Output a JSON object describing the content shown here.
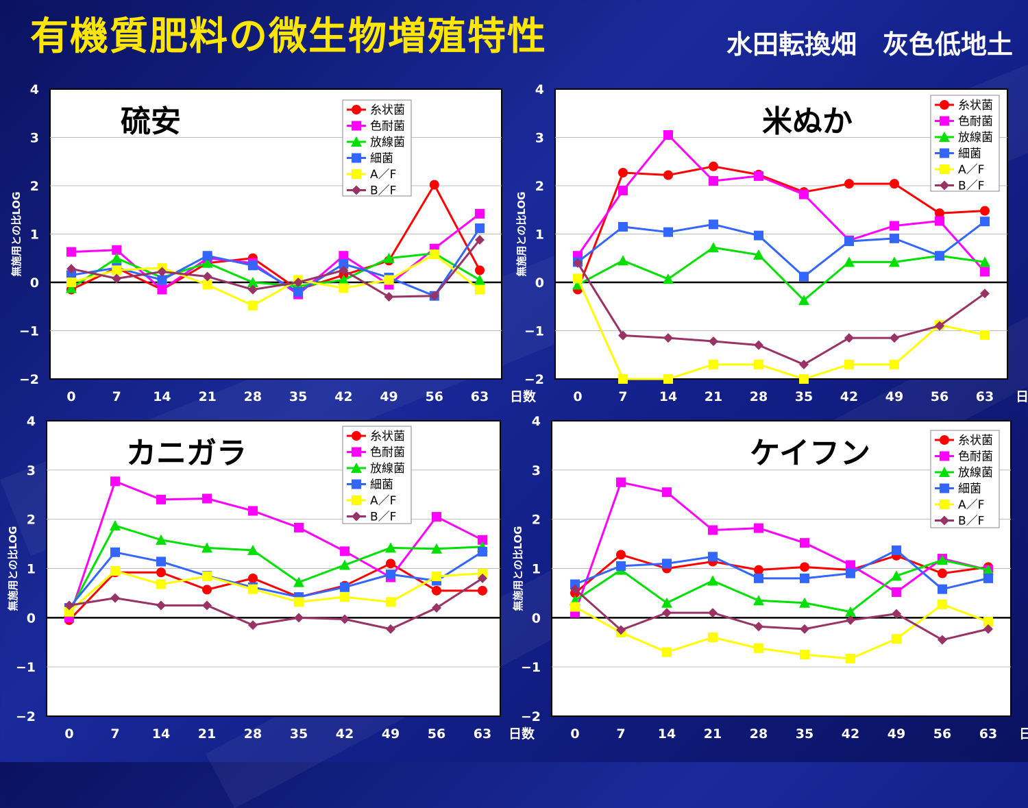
{
  "header": {
    "title": "有機質肥料の微生物増殖特性",
    "subtitle": "水田転換畑　灰色低地土"
  },
  "chart_data": [
    {
      "type": "line",
      "title": "硫安",
      "xlabel": "日数",
      "ylabel": "無施用との比LOG",
      "x": [
        0,
        7,
        14,
        21,
        28,
        35,
        42,
        49,
        56,
        63
      ],
      "ylim": [
        -2,
        4
      ],
      "yticks": [
        4,
        3,
        2,
        1,
        0,
        -1,
        -2
      ],
      "grid": true,
      "legend": "top-right",
      "series": [
        {
          "name": "糸状菌",
          "color": "#ff0000",
          "marker": "circle",
          "values": [
            -0.15,
            0.3,
            -0.15,
            0.4,
            0.5,
            -0.15,
            0.15,
            0.45,
            2.02,
            0.25
          ]
        },
        {
          "name": "色耐菌",
          "color": "#ff00ff",
          "marker": "square",
          "values": [
            0.63,
            0.67,
            -0.15,
            0.5,
            0.4,
            -0.25,
            0.55,
            -0.05,
            0.7,
            1.42
          ]
        },
        {
          "name": "放線菌",
          "color": "#00e000",
          "marker": "triangle",
          "values": [
            -0.12,
            0.5,
            0.1,
            0.4,
            0.0,
            -0.08,
            0.05,
            0.5,
            0.6,
            0.05
          ]
        },
        {
          "name": "細菌",
          "color": "#3366ff",
          "marker": "square",
          "values": [
            0.15,
            0.3,
            0.05,
            0.55,
            0.35,
            -0.2,
            0.38,
            0.1,
            -0.28,
            1.12
          ]
        },
        {
          "name": "A／F",
          "color": "#ffff00",
          "marker": "square",
          "values": [
            0.0,
            0.25,
            0.3,
            -0.05,
            -0.48,
            0.05,
            -0.12,
            0.05,
            0.58,
            -0.15
          ]
        },
        {
          "name": "B／F",
          "color": "#993366",
          "marker": "diamond",
          "values": [
            0.28,
            0.08,
            0.22,
            0.12,
            -0.15,
            0.0,
            0.25,
            -0.3,
            -0.28,
            0.88
          ]
        }
      ]
    },
    {
      "type": "line",
      "title": "米ぬか",
      "xlabel": "日数",
      "ylabel": "無施用との比LOG",
      "x": [
        0,
        7,
        14,
        21,
        28,
        35,
        42,
        49,
        56,
        63
      ],
      "ylim": [
        -2,
        4
      ],
      "yticks": [
        4,
        3,
        2,
        1,
        0,
        -1,
        -2
      ],
      "grid": true,
      "legend": "top-right",
      "series": [
        {
          "name": "糸状菌",
          "color": "#ff0000",
          "marker": "circle",
          "values": [
            -0.15,
            2.27,
            2.22,
            2.4,
            2.23,
            1.87,
            2.04,
            2.04,
            1.43,
            1.48
          ]
        },
        {
          "name": "色耐菌",
          "color": "#ff00ff",
          "marker": "square",
          "values": [
            0.55,
            1.9,
            3.05,
            2.1,
            2.2,
            1.82,
            0.87,
            1.17,
            1.27,
            0.22
          ]
        },
        {
          "name": "放線菌",
          "color": "#00e000",
          "marker": "triangle",
          "values": [
            -0.05,
            0.45,
            0.07,
            0.72,
            0.57,
            -0.37,
            0.42,
            0.42,
            0.55,
            0.42
          ]
        },
        {
          "name": "細菌",
          "color": "#3366ff",
          "marker": "square",
          "values": [
            0.42,
            1.15,
            1.04,
            1.2,
            0.97,
            0.12,
            0.85,
            0.91,
            0.55,
            1.26
          ]
        },
        {
          "name": "A／F",
          "color": "#ffff00",
          "marker": "square",
          "values": [
            0.08,
            -2.0,
            -2.0,
            -1.7,
            -1.7,
            -2.0,
            -1.7,
            -1.7,
            -0.88,
            -1.09
          ]
        },
        {
          "name": "B／F",
          "color": "#993366",
          "marker": "diamond",
          "values": [
            0.4,
            -1.1,
            -1.15,
            -1.22,
            -1.3,
            -1.7,
            -1.15,
            -1.15,
            -0.9,
            -0.23
          ]
        }
      ]
    },
    {
      "type": "line",
      "title": "カニガラ",
      "xlabel": "日数",
      "ylabel": "無施用との比LOG",
      "x": [
        0,
        7,
        14,
        21,
        28,
        35,
        42,
        49,
        56,
        63
      ],
      "ylim": [
        -2,
        4
      ],
      "yticks": [
        4,
        3,
        2,
        1,
        0,
        -1,
        -2
      ],
      "grid": true,
      "legend": "top-right",
      "series": [
        {
          "name": "糸状菌",
          "color": "#ff0000",
          "marker": "circle",
          "values": [
            -0.05,
            0.92,
            0.92,
            0.57,
            0.8,
            0.42,
            0.65,
            1.1,
            0.55,
            0.55
          ]
        },
        {
          "name": "色耐菌",
          "color": "#ff00ff",
          "marker": "square",
          "values": [
            0.0,
            2.77,
            2.4,
            2.42,
            2.17,
            1.83,
            1.35,
            0.82,
            2.05,
            1.58
          ]
        },
        {
          "name": "放線菌",
          "color": "#00e000",
          "marker": "triangle",
          "values": [
            0.12,
            1.87,
            1.58,
            1.42,
            1.37,
            0.72,
            1.07,
            1.42,
            1.4,
            1.44
          ]
        },
        {
          "name": "細菌",
          "color": "#3366ff",
          "marker": "square",
          "values": [
            0.2,
            1.33,
            1.14,
            0.85,
            0.62,
            0.42,
            0.62,
            0.88,
            0.75,
            1.34
          ]
        },
        {
          "name": "A／F",
          "color": "#ffff00",
          "marker": "square",
          "values": [
            0.12,
            0.95,
            0.68,
            0.84,
            0.58,
            0.32,
            0.42,
            0.32,
            0.84,
            0.9
          ]
        },
        {
          "name": "B／F",
          "color": "#993366",
          "marker": "diamond",
          "values": [
            0.25,
            0.4,
            0.25,
            0.25,
            -0.15,
            0.0,
            -0.03,
            -0.23,
            0.2,
            0.8
          ]
        }
      ]
    },
    {
      "type": "line",
      "title": "ケイフン",
      "xlabel": "日数",
      "ylabel": "無施用との比LOG",
      "x": [
        0,
        7,
        14,
        21,
        28,
        35,
        42,
        49,
        56,
        63
      ],
      "ylim": [
        -2,
        4
      ],
      "yticks": [
        4,
        3,
        2,
        1,
        0,
        -1,
        -2
      ],
      "grid": true,
      "legend": "top-right",
      "series": [
        {
          "name": "糸状菌",
          "color": "#ff0000",
          "marker": "circle",
          "values": [
            0.5,
            1.28,
            1.0,
            1.14,
            0.97,
            1.03,
            0.97,
            1.26,
            0.9,
            1.03
          ]
        },
        {
          "name": "色耐菌",
          "color": "#ff00ff",
          "marker": "square",
          "values": [
            0.1,
            2.75,
            2.55,
            1.78,
            1.82,
            1.52,
            1.07,
            0.52,
            1.2,
            0.97
          ]
        },
        {
          "name": "放線菌",
          "color": "#00e000",
          "marker": "triangle",
          "values": [
            0.35,
            0.97,
            0.3,
            0.75,
            0.35,
            0.3,
            0.12,
            0.85,
            1.17,
            0.97
          ]
        },
        {
          "name": "細菌",
          "color": "#3366ff",
          "marker": "square",
          "values": [
            0.68,
            1.05,
            1.1,
            1.24,
            0.8,
            0.8,
            0.9,
            1.37,
            0.58,
            0.8
          ]
        },
        {
          "name": "A／F",
          "color": "#ffff00",
          "marker": "square",
          "values": [
            0.22,
            -0.3,
            -0.7,
            -0.4,
            -0.62,
            -0.75,
            -0.83,
            -0.43,
            0.27,
            -0.08
          ]
        },
        {
          "name": "B／F",
          "color": "#993366",
          "marker": "diamond",
          "values": [
            0.58,
            -0.25,
            0.1,
            0.1,
            -0.18,
            -0.23,
            -0.05,
            0.08,
            -0.45,
            -0.23
          ]
        }
      ]
    }
  ]
}
